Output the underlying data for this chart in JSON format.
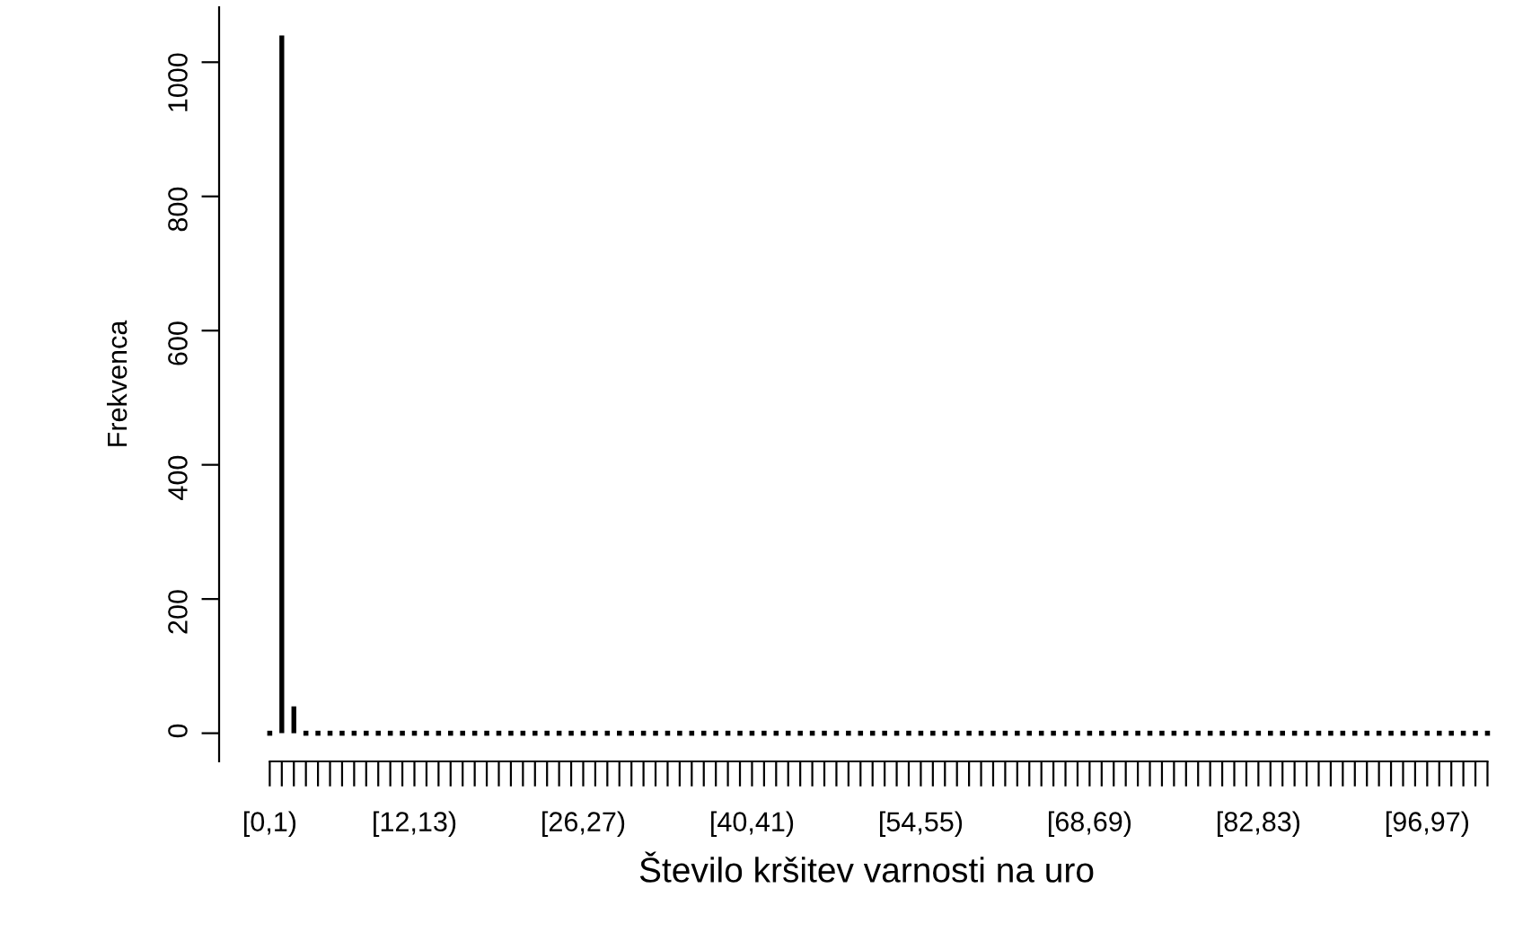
{
  "chart_data": {
    "type": "bar",
    "xlabel": "Število kršitev varnosti na uro",
    "ylabel": "Frekvenca",
    "categories": [
      "[0,1)",
      null,
      null,
      null,
      null,
      null,
      null,
      null,
      null,
      null,
      null,
      null,
      "[12,13)",
      null,
      null,
      null,
      null,
      null,
      null,
      null,
      null,
      null,
      null,
      null,
      null,
      null,
      "[26,27)",
      null,
      null,
      null,
      null,
      null,
      null,
      null,
      null,
      null,
      null,
      null,
      null,
      null,
      "[40,41)",
      null,
      null,
      null,
      null,
      null,
      null,
      null,
      null,
      null,
      null,
      null,
      null,
      null,
      "[54,55)",
      null,
      null,
      null,
      null,
      null,
      null,
      null,
      null,
      null,
      null,
      null,
      null,
      null,
      "[68,69)",
      null,
      null,
      null,
      null,
      null,
      null,
      null,
      null,
      null,
      null,
      null,
      null,
      null,
      "[82,83)",
      null,
      null,
      null,
      null,
      null,
      null,
      null,
      null,
      null,
      null,
      null,
      null,
      null,
      "[96,97)",
      null,
      null,
      null,
      null,
      null
    ],
    "values": [
      0,
      1040,
      40,
      0,
      0,
      0,
      0,
      0,
      0,
      0,
      0,
      0,
      0,
      0,
      0,
      0,
      0,
      0,
      0,
      0,
      0,
      0,
      0,
      0,
      0,
      0,
      0,
      0,
      0,
      0,
      0,
      0,
      0,
      0,
      0,
      0,
      0,
      0,
      0,
      0,
      0,
      0,
      0,
      0,
      0,
      0,
      0,
      0,
      0,
      0,
      0,
      0,
      0,
      0,
      0,
      0,
      0,
      0,
      0,
      0,
      0,
      0,
      0,
      0,
      0,
      0,
      0,
      0,
      0,
      0,
      0,
      0,
      0,
      0,
      0,
      0,
      0,
      0,
      0,
      0,
      0,
      0,
      0,
      0,
      0,
      0,
      0,
      0,
      0,
      0,
      0,
      0,
      0,
      0,
      0,
      0,
      0,
      0,
      0,
      0,
      0,
      0
    ],
    "color": "#000000",
    "ylim": [
      -42,
      1082
    ],
    "yticks": [
      0,
      200,
      400,
      600,
      800,
      1000
    ],
    "grid": false,
    "legend": false
  }
}
